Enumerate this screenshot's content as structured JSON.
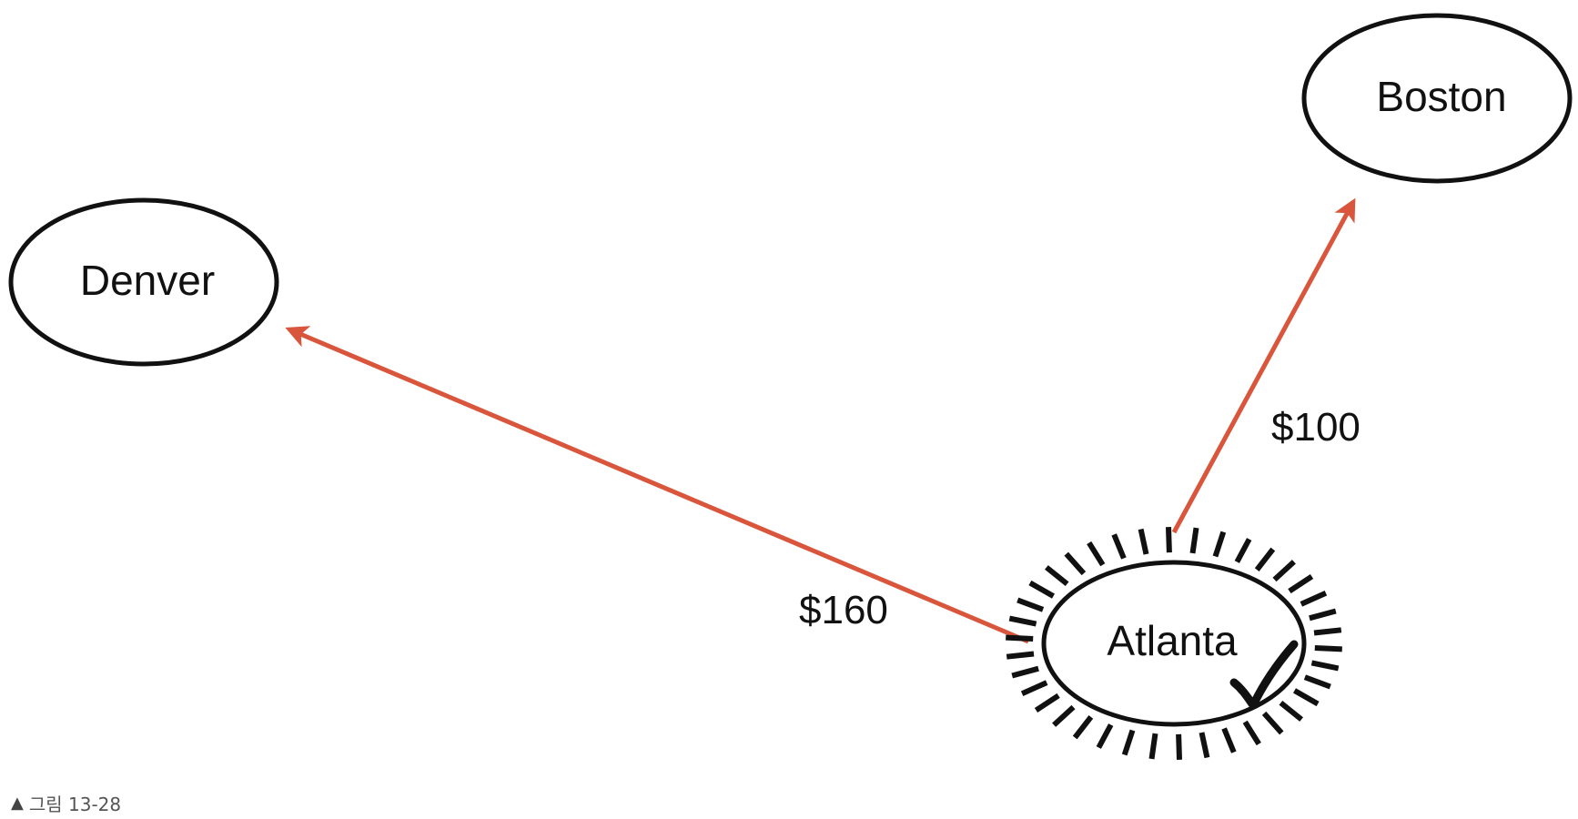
{
  "nodes": {
    "denver": {
      "label": "Denver"
    },
    "boston": {
      "label": "Boston"
    },
    "atlanta": {
      "label": "Atlanta",
      "visited_mark": "checkmark-icon"
    }
  },
  "edges": {
    "atlanta_to_denver": {
      "from": "Atlanta",
      "to": "Denver",
      "label": "$160"
    },
    "atlanta_to_boston": {
      "from": "Atlanta",
      "to": "Boston",
      "label": "$100"
    }
  },
  "colors": {
    "edge": "#d9553b",
    "node_stroke": "#111111"
  },
  "caption": {
    "marker": "▲",
    "text": "그림 13-28"
  }
}
